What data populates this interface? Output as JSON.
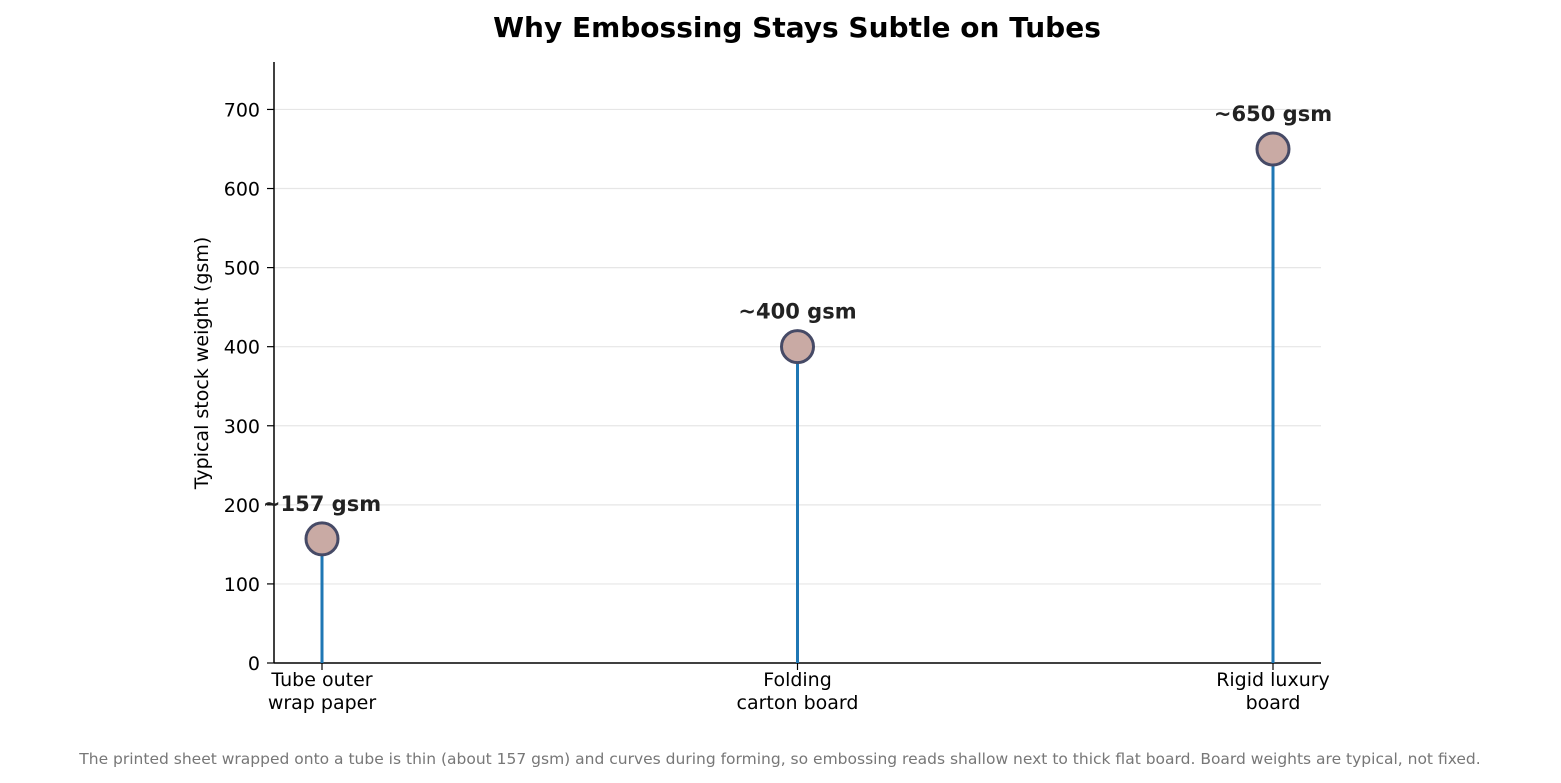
{
  "chart_data": {
    "type": "lollipop",
    "title": "Why Embossing Stays Subtle on Tubes",
    "ylabel": "Typical stock weight (gsm)",
    "xlabel": "",
    "categories": [
      [
        "Tube outer",
        "wrap paper"
      ],
      [
        "Folding",
        "carton board"
      ],
      [
        "Rigid luxury",
        "board"
      ]
    ],
    "values": [
      157,
      400,
      650
    ],
    "data_labels": [
      "~157 gsm",
      "~400 gsm",
      "~650 gsm"
    ],
    "ylim": [
      0,
      760
    ],
    "yticks": [
      0,
      100,
      200,
      300,
      400,
      500,
      600,
      700
    ],
    "grid": "horizontal",
    "colors": {
      "stem": "#1f77b4",
      "marker_fill": "#c9aaa4",
      "marker_edge": "#464a66",
      "grid": "#e6e6e6",
      "axis": "#000000"
    },
    "caption": "The printed sheet wrapped onto a tube is thin (about 157 gsm) and curves during forming, so embossing reads shallow next to thick flat board. Board weights are typical, not fixed."
  }
}
